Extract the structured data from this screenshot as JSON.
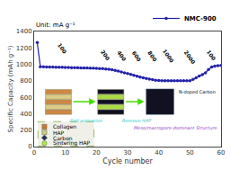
{
  "chart_data": {
    "type": "line",
    "xlabel": "Cycle number",
    "ylabel": "Specific Capacity (mAh g⁻¹)",
    "subtitle": "Unit: mA g⁻¹",
    "x": [
      1,
      2,
      3,
      4,
      5,
      6,
      7,
      8,
      9,
      10,
      11,
      12,
      13,
      14,
      15,
      16,
      17,
      18,
      19,
      20,
      21,
      22,
      23,
      24,
      25,
      26,
      27,
      28,
      29,
      30,
      31,
      32,
      33,
      34,
      35,
      36,
      37,
      38,
      39,
      40,
      41,
      42,
      43,
      44,
      45,
      46,
      47,
      48,
      49,
      50,
      51,
      52,
      53,
      54,
      55,
      56,
      57,
      58,
      59,
      60
    ],
    "series": [
      {
        "name": "NMC-900",
        "color": "#2222aa",
        "marker": "circle",
        "values": [
          1265,
          972,
          970,
          969,
          968,
          967,
          966,
          965,
          964,
          963,
          962,
          961,
          960,
          959,
          958,
          957,
          956,
          955,
          954,
          952,
          950,
          948,
          944,
          940,
          934,
          926,
          918,
          908,
          898,
          888,
          878,
          866,
          856,
          846,
          836,
          828,
          820,
          814,
          808,
          804,
          800,
          800,
          800,
          800,
          800,
          800,
          800,
          800,
          800,
          800,
          818,
          838,
          858,
          876,
          898,
          938,
          968,
          978,
          984,
          988
        ]
      }
    ],
    "xlim": [
      0,
      60
    ],
    "ylim": [
      0,
      1400
    ],
    "xticks": [
      0,
      10,
      20,
      30,
      40,
      50,
      60
    ],
    "yticks": [
      0,
      200,
      400,
      600,
      800,
      1000,
      1200,
      1400
    ],
    "grid": false,
    "legend": "upper right",
    "annotations": [
      {
        "text": "100",
        "x": 9,
        "y": 1085
      },
      {
        "text": "200",
        "x": 23,
        "y": 1000
      },
      {
        "text": "400",
        "x": 28,
        "y": 995
      },
      {
        "text": "600",
        "x": 33,
        "y": 990
      },
      {
        "text": "800",
        "x": 38,
        "y": 985
      },
      {
        "text": "1000",
        "x": 43,
        "y": 978
      },
      {
        "text": "2000",
        "x": 50,
        "y": 960
      },
      {
        "text": "100",
        "x": 57,
        "y": 1000
      },
      {
        "text": "Self-activation",
        "color": "#33cccc"
      },
      {
        "text": "Remove HAP",
        "color": "#33cccc"
      },
      {
        "text": "N-doped Carbon",
        "color": "#000000"
      },
      {
        "text": "Meso/macropore-dominant Structure",
        "color": "#9944cc"
      },
      {
        "text": "Collagen",
        "color": "#cc7733",
        "marker": "square"
      },
      {
        "text": "HAP",
        "color": "#cccc88",
        "marker": "square"
      },
      {
        "text": "Carbon",
        "color": "#223355",
        "marker": "diamond"
      },
      {
        "text": "Sintering HAP",
        "color": "#aaee44",
        "marker": "circle"
      }
    ],
    "schematic": [
      {
        "type": "box",
        "colors": [
          "#cc8844",
          "#ddcc88",
          "#cc8844",
          "#ddcc88",
          "#cc8844"
        ]
      },
      {
        "type": "arrow",
        "color": "#44dd00"
      },
      {
        "type": "box",
        "colors": [
          "#111122",
          "#aadd44",
          "#111122",
          "#aadd44",
          "#111122"
        ]
      },
      {
        "type": "arrow",
        "color": "#44dd00"
      },
      {
        "type": "box",
        "color": "#111122"
      }
    ]
  }
}
